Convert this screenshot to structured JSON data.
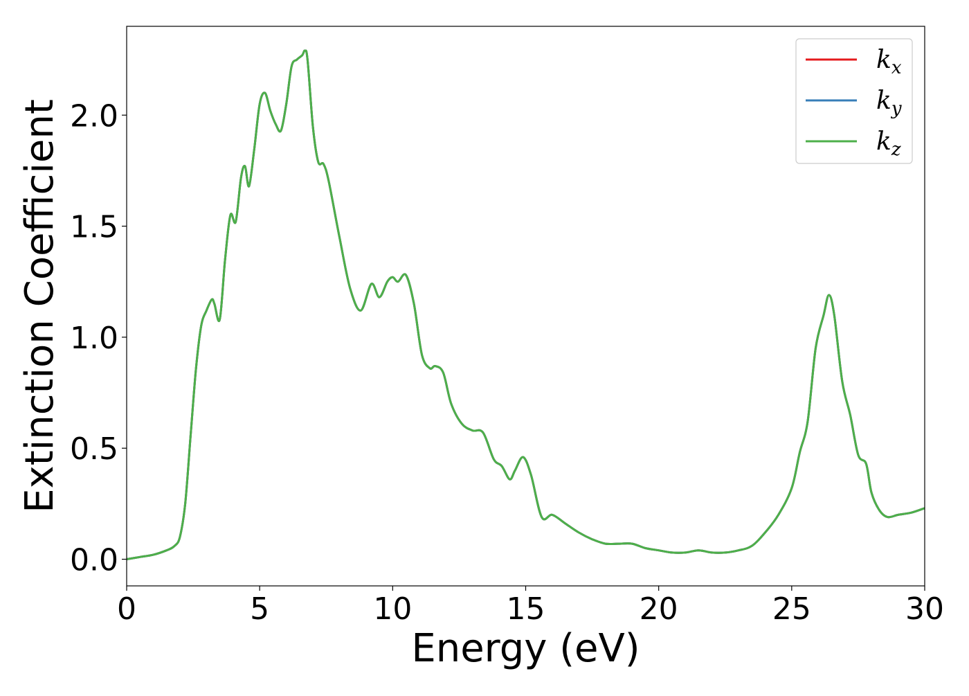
{
  "chart_data": {
    "type": "line",
    "title": "",
    "xlabel": "Energy (eV)",
    "ylabel": "Extinction Coefficient",
    "xlim": [
      0,
      30
    ],
    "ylim": [
      -0.12,
      2.4
    ],
    "xticks": [
      0,
      5,
      10,
      15,
      20,
      25,
      30
    ],
    "xtick_labels": [
      "0",
      "5",
      "10",
      "15",
      "20",
      "25",
      "30"
    ],
    "yticks": [
      0.0,
      0.5,
      1.0,
      1.5,
      2.0
    ],
    "ytick_labels": [
      "0.0",
      "0.5",
      "1.0",
      "1.5",
      "2.0"
    ],
    "grid": false,
    "legend_position": "top-right",
    "series": [
      {
        "name": "k",
        "sub": "x",
        "color": "#e41a1c"
      },
      {
        "name": "k",
        "sub": "y",
        "color": "#377eb8"
      },
      {
        "name": "k",
        "sub": "z",
        "color": "#4daf4a"
      }
    ],
    "x": [
      0,
      0.5,
      1.0,
      1.5,
      1.8,
      2.0,
      2.2,
      2.4,
      2.6,
      2.8,
      3.0,
      3.2,
      3.3,
      3.5,
      3.7,
      3.9,
      4.1,
      4.3,
      4.45,
      4.6,
      4.8,
      5.0,
      5.2,
      5.4,
      5.6,
      5.8,
      6.0,
      6.2,
      6.4,
      6.6,
      6.7,
      6.8,
      7.0,
      7.2,
      7.4,
      7.6,
      8.0,
      8.4,
      8.8,
      9.2,
      9.5,
      9.8,
      10.0,
      10.2,
      10.5,
      10.8,
      11.1,
      11.4,
      11.6,
      11.9,
      12.2,
      12.6,
      13.0,
      13.4,
      13.8,
      14.1,
      14.4,
      14.6,
      14.9,
      15.2,
      15.6,
      16.0,
      16.5,
      17.0,
      17.5,
      18.0,
      18.5,
      19.0,
      19.5,
      20.0,
      20.5,
      21.0,
      21.5,
      22.0,
      22.5,
      23.0,
      23.5,
      24.0,
      24.5,
      25.0,
      25.3,
      25.6,
      25.9,
      26.2,
      26.4,
      26.6,
      26.9,
      27.2,
      27.5,
      27.8,
      28.0,
      28.3,
      28.6,
      29.0,
      29.5,
      30.0
    ],
    "y": [
      0.0,
      0.01,
      0.02,
      0.04,
      0.06,
      0.1,
      0.25,
      0.55,
      0.85,
      1.05,
      1.12,
      1.17,
      1.15,
      1.08,
      1.35,
      1.55,
      1.52,
      1.72,
      1.77,
      1.68,
      1.85,
      2.05,
      2.1,
      2.02,
      1.96,
      1.93,
      2.05,
      2.22,
      2.25,
      2.27,
      2.29,
      2.25,
      1.95,
      1.79,
      1.78,
      1.7,
      1.45,
      1.22,
      1.12,
      1.24,
      1.18,
      1.25,
      1.27,
      1.25,
      1.28,
      1.15,
      0.92,
      0.86,
      0.87,
      0.84,
      0.7,
      0.61,
      0.58,
      0.57,
      0.45,
      0.42,
      0.36,
      0.4,
      0.46,
      0.38,
      0.19,
      0.2,
      0.16,
      0.12,
      0.09,
      0.07,
      0.07,
      0.07,
      0.05,
      0.04,
      0.03,
      0.03,
      0.04,
      0.03,
      0.03,
      0.04,
      0.06,
      0.12,
      0.2,
      0.32,
      0.48,
      0.62,
      0.95,
      1.1,
      1.19,
      1.1,
      0.8,
      0.65,
      0.47,
      0.43,
      0.3,
      0.22,
      0.19,
      0.2,
      0.21,
      0.23
    ]
  }
}
